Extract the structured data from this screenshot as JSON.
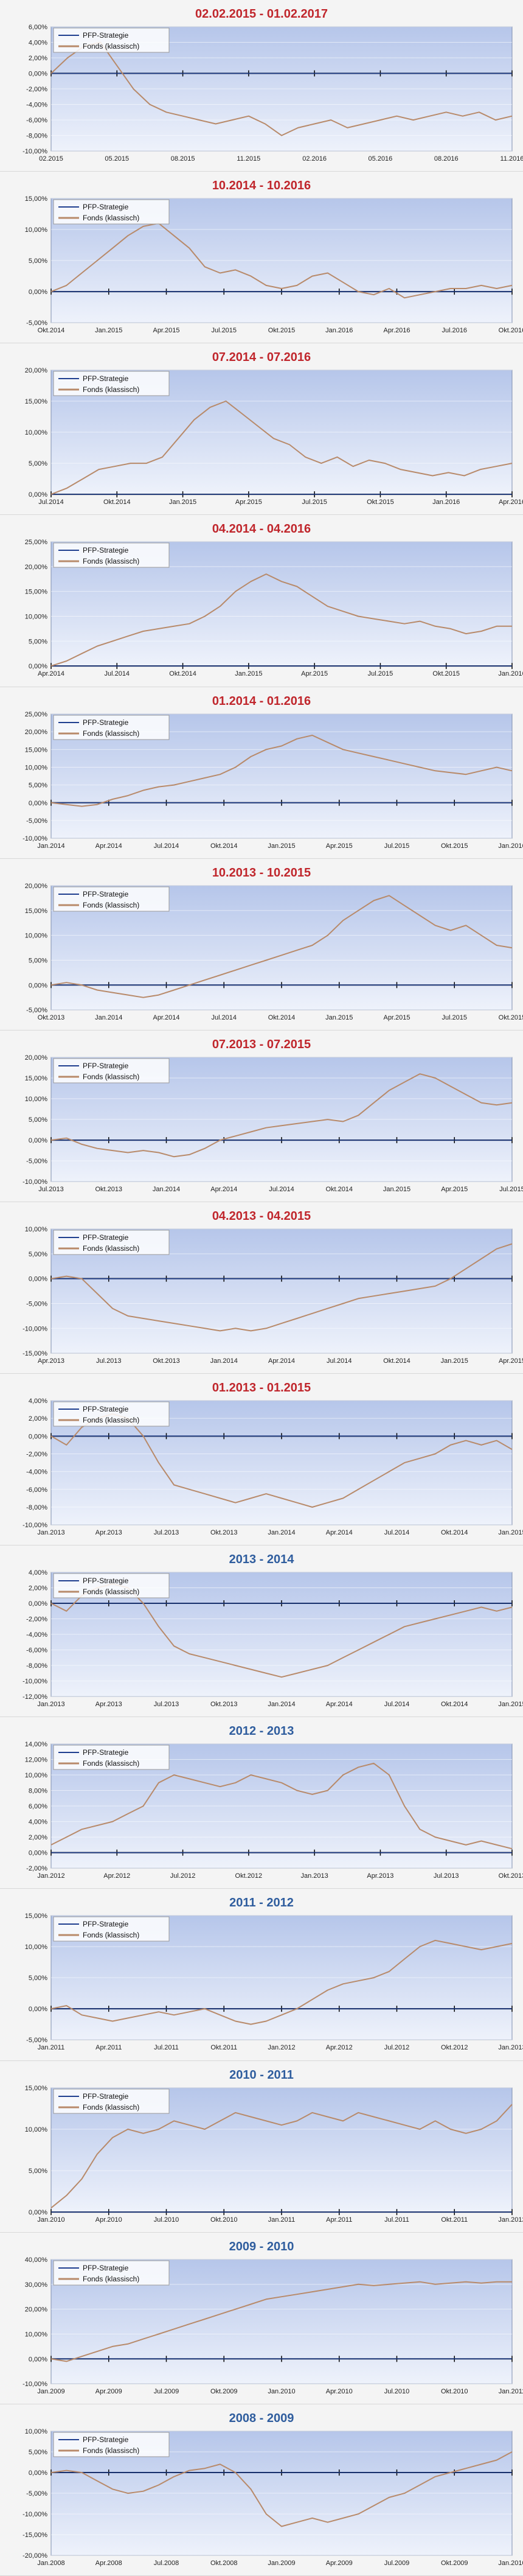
{
  "legend_labels": [
    "PFP-Strategie",
    "Fonds (klassisch)"
  ],
  "colors": {
    "strategy_line": "#1f3f8f",
    "fund_line": "#b88a6a",
    "plot_bg_top": "#b6c6ea",
    "plot_bg_bottom": "#eef2fb",
    "title_red": "#c0262c",
    "title_blue": "#2f5d9e"
  },
  "chart_data": [
    {
      "type": "line",
      "title": "02.02.2015 - 01.02.2017",
      "title_color": "red",
      "legend": [
        "PFP-Strategie",
        "Fonds (klassisch)"
      ],
      "ylim": [
        -10,
        6
      ],
      "yticks": [
        "6,00%",
        "4,00%",
        "2,00%",
        "0,00%",
        "-2,00%",
        "-4,00%",
        "-6,00%",
        "-8,00%",
        "-10,00%"
      ],
      "xticks": [
        "02.2015",
        "05.2015",
        "08.2015",
        "11.2015",
        "02.2016",
        "05.2016",
        "08.2016",
        "11.2016"
      ],
      "series": [
        {
          "name": "PFP-Strategie",
          "values": [
            0,
            0
          ]
        },
        {
          "name": "Fonds (klassisch)",
          "values": [
            0,
            2,
            3.5,
            4,
            1,
            -2,
            -4,
            -5,
            -5.5,
            -6,
            -6.5,
            -6,
            -5.5,
            -6.5,
            -8,
            -7,
            -6.5,
            -6,
            -7,
            -6.5,
            -6,
            -5.5,
            -6,
            -5.5,
            -5,
            -5.5,
            -5,
            -6,
            -5.5
          ]
        }
      ]
    },
    {
      "type": "line",
      "title": "10.2014 - 10.2016",
      "title_color": "red",
      "legend": [
        "PFP-Strategie",
        "Fonds (klassisch)"
      ],
      "ylim": [
        -5,
        15
      ],
      "yticks": [
        "15,00%",
        "10,00%",
        "5,00%",
        "0,00%",
        "-5,00%"
      ],
      "xticks": [
        "Okt.2014",
        "Jan.2015",
        "Apr.2015",
        "Jul.2015",
        "Okt.2015",
        "Jan.2016",
        "Apr.2016",
        "Jul.2016",
        "Okt.2016"
      ],
      "series": [
        {
          "name": "PFP-Strategie",
          "values": [
            0,
            0
          ]
        },
        {
          "name": "Fonds (klassisch)",
          "values": [
            0,
            1,
            3,
            5,
            7,
            9,
            10.5,
            11,
            9,
            7,
            4,
            3,
            3.5,
            2.5,
            1,
            0.5,
            1,
            2.5,
            3,
            1.5,
            0,
            -0.5,
            0.5,
            -1,
            -0.5,
            0,
            0.5,
            0.5,
            1,
            0.5,
            1
          ]
        }
      ]
    },
    {
      "type": "line",
      "title": "07.2014 - 07.2016",
      "title_color": "red",
      "legend": [
        "PFP-Strategie",
        "Fonds (klassisch)"
      ],
      "ylim": [
        0,
        20
      ],
      "yticks": [
        "20,00%",
        "15,00%",
        "10,00%",
        "5,00%",
        "0,00%"
      ],
      "xticks": [
        "Jul.2014",
        "Okt.2014",
        "Jan.2015",
        "Apr.2015",
        "Jul.2015",
        "Okt.2015",
        "Jan.2016",
        "Apr.2016"
      ],
      "series": [
        {
          "name": "PFP-Strategie",
          "values": [
            0,
            0
          ]
        },
        {
          "name": "Fonds (klassisch)",
          "values": [
            0,
            1,
            2.5,
            4,
            4.5,
            5,
            5,
            6,
            9,
            12,
            14,
            15,
            13,
            11,
            9,
            8,
            6,
            5,
            6,
            4.5,
            5.5,
            5,
            4,
            3.5,
            3,
            3.5,
            3,
            4,
            4.5,
            5
          ]
        }
      ]
    },
    {
      "type": "line",
      "title": "04.2014 - 04.2016",
      "title_color": "red",
      "legend": [
        "PFP-Strategie",
        "Fonds (klassisch)"
      ],
      "ylim": [
        0,
        25
      ],
      "yticks": [
        "25,00%",
        "20,00%",
        "15,00%",
        "10,00%",
        "5,00%",
        "0,00%"
      ],
      "xticks": [
        "Apr.2014",
        "Jul.2014",
        "Okt.2014",
        "Jan.2015",
        "Apr.2015",
        "Jul.2015",
        "Okt.2015",
        "Jan.2016"
      ],
      "series": [
        {
          "name": "PFP-Strategie",
          "values": [
            0,
            0
          ]
        },
        {
          "name": "Fonds (klassisch)",
          "values": [
            0,
            1,
            2.5,
            4,
            5,
            6,
            7,
            7.5,
            8,
            8.5,
            10,
            12,
            15,
            17,
            18.5,
            17,
            16,
            14,
            12,
            11,
            10,
            9.5,
            9,
            8.5,
            9,
            8,
            7.5,
            6.5,
            7,
            8,
            8
          ]
        }
      ]
    },
    {
      "type": "line",
      "title": "01.2014 - 01.2016",
      "title_color": "red",
      "legend": [
        "PFP-Strategie",
        "Fonds (klassisch)"
      ],
      "ylim": [
        -10,
        25
      ],
      "yticks": [
        "25,00%",
        "20,00%",
        "15,00%",
        "10,00%",
        "5,00%",
        "0,00%",
        "-5,00%",
        "-10,00%"
      ],
      "xticks": [
        "Jan.2014",
        "Apr.2014",
        "Jul.2014",
        "Okt.2014",
        "Jan.2015",
        "Apr.2015",
        "Jul.2015",
        "Okt.2015",
        "Jan.2016"
      ],
      "series": [
        {
          "name": "PFP-Strategie",
          "values": [
            0,
            0
          ]
        },
        {
          "name": "Fonds (klassisch)",
          "values": [
            0,
            -0.5,
            -1,
            -0.5,
            1,
            2,
            3.5,
            4.5,
            5,
            6,
            7,
            8,
            10,
            13,
            15,
            16,
            18,
            19,
            17,
            15,
            14,
            13,
            12,
            11,
            10,
            9,
            8.5,
            8,
            9,
            10,
            9
          ]
        }
      ]
    },
    {
      "type": "line",
      "title": "10.2013 - 10.2015",
      "title_color": "red",
      "legend": [
        "PFP-Strategie",
        "Fonds (klassisch)"
      ],
      "ylim": [
        -5,
        20
      ],
      "yticks": [
        "20,00%",
        "15,00%",
        "10,00%",
        "5,00%",
        "0,00%",
        "-5,00%"
      ],
      "xticks": [
        "Okt.2013",
        "Jan.2014",
        "Apr.2014",
        "Jul.2014",
        "Okt.2014",
        "Jan.2015",
        "Apr.2015",
        "Jul.2015",
        "Okt.2015"
      ],
      "series": [
        {
          "name": "PFP-Strategie",
          "values": [
            0,
            0
          ]
        },
        {
          "name": "Fonds (klassisch)",
          "values": [
            0,
            0.5,
            0,
            -1,
            -1.5,
            -2,
            -2.5,
            -2,
            -1,
            0,
            1,
            2,
            3,
            4,
            5,
            6,
            7,
            8,
            10,
            13,
            15,
            17,
            18,
            16,
            14,
            12,
            11,
            12,
            10,
            8,
            7.5
          ]
        }
      ]
    },
    {
      "type": "line",
      "title": "07.2013 - 07.2015",
      "title_color": "red",
      "legend": [
        "PFP-Strategie",
        "Fonds (klassisch)"
      ],
      "ylim": [
        -10,
        20
      ],
      "yticks": [
        "20,00%",
        "15,00%",
        "10,00%",
        "5,00%",
        "0,00%",
        "-5,00%",
        "-10,00%"
      ],
      "xticks": [
        "Jul.2013",
        "Okt.2013",
        "Jan.2014",
        "Apr.2014",
        "Jul.2014",
        "Okt.2014",
        "Jan.2015",
        "Apr.2015",
        "Jul.2015"
      ],
      "series": [
        {
          "name": "PFP-Strategie",
          "values": [
            0,
            0
          ]
        },
        {
          "name": "Fonds (klassisch)",
          "values": [
            0,
            0.5,
            -1,
            -2,
            -2.5,
            -3,
            -2.5,
            -3,
            -4,
            -3.5,
            -2,
            0,
            1,
            2,
            3,
            3.5,
            4,
            4.5,
            5,
            4.5,
            6,
            9,
            12,
            14,
            16,
            15,
            13,
            11,
            9,
            8.5,
            9
          ]
        }
      ]
    },
    {
      "type": "line",
      "title": "04.2013 - 04.2015",
      "title_color": "red",
      "legend": [
        "PFP-Strategie",
        "Fonds (klassisch)"
      ],
      "ylim": [
        -15,
        10
      ],
      "yticks": [
        "10,00%",
        "5,00%",
        "0,00%",
        "-5,00%",
        "-10,00%",
        "-15,00%"
      ],
      "xticks": [
        "Apr.2013",
        "Jul.2013",
        "Okt.2013",
        "Jan.2014",
        "Apr.2014",
        "Jul.2014",
        "Okt.2014",
        "Jan.2015",
        "Apr.2015"
      ],
      "series": [
        {
          "name": "PFP-Strategie",
          "values": [
            0,
            0
          ]
        },
        {
          "name": "Fonds (klassisch)",
          "values": [
            0,
            0.5,
            0,
            -3,
            -6,
            -7.5,
            -8,
            -8.5,
            -9,
            -9.5,
            -10,
            -10.5,
            -10,
            -10.5,
            -10,
            -9,
            -8,
            -7,
            -6,
            -5,
            -4,
            -3.5,
            -3,
            -2.5,
            -2,
            -1.5,
            0,
            2,
            4,
            6,
            7
          ]
        }
      ]
    },
    {
      "type": "line",
      "title": "01.2013 - 01.2015",
      "title_color": "red",
      "legend": [
        "PFP-Strategie",
        "Fonds (klassisch)"
      ],
      "ylim": [
        -10,
        4
      ],
      "yticks": [
        "4,00%",
        "2,00%",
        "0,00%",
        "-2,00%",
        "-4,00%",
        "-6,00%",
        "-8,00%",
        "-10,00%"
      ],
      "xticks": [
        "Jan.2013",
        "Apr.2013",
        "Jul.2013",
        "Okt.2013",
        "Jan.2014",
        "Apr.2014",
        "Jul.2014",
        "Okt.2014",
        "Jan.2015"
      ],
      "series": [
        {
          "name": "PFP-Strategie",
          "values": [
            0,
            0
          ]
        },
        {
          "name": "Fonds (klassisch)",
          "values": [
            0,
            -1,
            1,
            2,
            2.5,
            2,
            0,
            -3,
            -5.5,
            -6,
            -6.5,
            -7,
            -7.5,
            -7,
            -6.5,
            -7,
            -7.5,
            -8,
            -7.5,
            -7,
            -6,
            -5,
            -4,
            -3,
            -2.5,
            -2,
            -1,
            -0.5,
            -1,
            -0.5,
            -1.5
          ]
        }
      ]
    },
    {
      "type": "line",
      "title": "2013 - 2014",
      "title_color": "blue",
      "legend": [
        "PFP-Strategie",
        "Fonds (klassisch)"
      ],
      "ylim": [
        -12,
        4
      ],
      "yticks": [
        "4,00%",
        "2,00%",
        "0,00%",
        "-2,00%",
        "-4,00%",
        "-6,00%",
        "-8,00%",
        "-10,00%",
        "-12,00%"
      ],
      "xticks": [
        "Jan.2013",
        "Apr.2013",
        "Jul.2013",
        "Okt.2013",
        "Jan.2014",
        "Apr.2014",
        "Jul.2014",
        "Okt.2014",
        "Jan.2015"
      ],
      "series": [
        {
          "name": "PFP-Strategie",
          "values": [
            0,
            0
          ]
        },
        {
          "name": "Fonds (klassisch)",
          "values": [
            0,
            -1,
            1,
            2,
            2.5,
            2,
            0,
            -3,
            -5.5,
            -6.5,
            -7,
            -7.5,
            -8,
            -8.5,
            -9,
            -9.5,
            -9,
            -8.5,
            -8,
            -7,
            -6,
            -5,
            -4,
            -3,
            -2.5,
            -2,
            -1.5,
            -1,
            -0.5,
            -1,
            -0.5
          ]
        }
      ]
    },
    {
      "type": "line",
      "title": "2012 - 2013",
      "title_color": "blue",
      "legend": [
        "PFP-Strategie",
        "Fonds (klassisch)"
      ],
      "ylim": [
        -2,
        14
      ],
      "yticks": [
        "14,00%",
        "12,00%",
        "10,00%",
        "8,00%",
        "6,00%",
        "4,00%",
        "2,00%",
        "0,00%",
        "-2,00%"
      ],
      "xticks": [
        "Jan.2012",
        "Apr.2012",
        "Jul.2012",
        "Okt.2012",
        "Jan.2013",
        "Apr.2013",
        "Jul.2013",
        "Okt.2013"
      ],
      "series": [
        {
          "name": "PFP-Strategie",
          "values": [
            0,
            0
          ]
        },
        {
          "name": "Fonds (klassisch)",
          "values": [
            1,
            2,
            3,
            3.5,
            4,
            5,
            6,
            9,
            10,
            9.5,
            9,
            8.5,
            9,
            10,
            9.5,
            9,
            8,
            7.5,
            8,
            10,
            11,
            11.5,
            10,
            6,
            3,
            2,
            1.5,
            1,
            1.5,
            1,
            0.5
          ]
        }
      ]
    },
    {
      "type": "line",
      "title": "2011 - 2012",
      "title_color": "blue",
      "legend": [
        "PFP-Strategie",
        "Fonds (klassisch)"
      ],
      "ylim": [
        -5,
        15
      ],
      "yticks": [
        "15,00%",
        "10,00%",
        "5,00%",
        "0,00%",
        "-5,00%"
      ],
      "xticks": [
        "Jan.2011",
        "Apr.2011",
        "Jul.2011",
        "Okt.2011",
        "Jan.2012",
        "Apr.2012",
        "Jul.2012",
        "Okt.2012",
        "Jan.2013"
      ],
      "series": [
        {
          "name": "PFP-Strategie",
          "values": [
            0,
            0
          ]
        },
        {
          "name": "Fonds (klassisch)",
          "values": [
            0,
            0.5,
            -1,
            -1.5,
            -2,
            -1.5,
            -1,
            -0.5,
            -1,
            -0.5,
            0,
            -1,
            -2,
            -2.5,
            -2,
            -1,
            0,
            1.5,
            3,
            4,
            4.5,
            5,
            6,
            8,
            10,
            11,
            10.5,
            10,
            9.5,
            10,
            10.5
          ]
        }
      ]
    },
    {
      "type": "line",
      "title": "2010 - 2011",
      "title_color": "blue",
      "legend": [
        "PFP-Strategie",
        "Fonds (klassisch)"
      ],
      "ylim": [
        0,
        15
      ],
      "yticks": [
        "15,00%",
        "10,00%",
        "5,00%",
        "0,00%"
      ],
      "xticks": [
        "Jan.2010",
        "Apr.2010",
        "Jul.2010",
        "Okt.2010",
        "Jan.2011",
        "Apr.2011",
        "Jul.2011",
        "Okt.2011",
        "Jan.2012"
      ],
      "series": [
        {
          "name": "PFP-Strategie",
          "values": [
            0,
            0
          ]
        },
        {
          "name": "Fonds (klassisch)",
          "values": [
            0.5,
            2,
            4,
            7,
            9,
            10,
            9.5,
            10,
            11,
            10.5,
            10,
            11,
            12,
            11.5,
            11,
            10.5,
            11,
            12,
            11.5,
            11,
            12,
            11.5,
            11,
            10.5,
            10,
            11,
            10,
            9.5,
            10,
            11,
            13
          ]
        }
      ]
    },
    {
      "type": "line",
      "title": "2009 - 2010",
      "title_color": "blue",
      "legend": [
        "PFP-Strategie",
        "Fonds (klassisch)"
      ],
      "ylim": [
        -10,
        40
      ],
      "yticks": [
        "40,00%",
        "30,00%",
        "20,00%",
        "10,00%",
        "0,00%",
        "-10,00%"
      ],
      "xticks": [
        "Jan.2009",
        "Apr.2009",
        "Jul.2009",
        "Okt.2009",
        "Jan.2010",
        "Apr.2010",
        "Jul.2010",
        "Okt.2010",
        "Jan.2011"
      ],
      "series": [
        {
          "name": "PFP-Strategie",
          "values": [
            0,
            0
          ]
        },
        {
          "name": "Fonds (klassisch)",
          "values": [
            0,
            -1,
            1,
            3,
            5,
            6,
            8,
            10,
            12,
            14,
            16,
            18,
            20,
            22,
            24,
            25,
            26,
            27,
            28,
            29,
            30,
            29.5,
            30,
            30.5,
            31,
            30,
            30.5,
            31,
            30.5,
            31,
            31
          ]
        }
      ]
    },
    {
      "type": "line",
      "title": "2008 - 2009",
      "title_color": "blue",
      "legend": [
        "PFP-Strategie",
        "Fonds (klassisch)"
      ],
      "ylim": [
        -20,
        10
      ],
      "yticks": [
        "10,00%",
        "5,00%",
        "0,00%",
        "-5,00%",
        "-10,00%",
        "-15,00%",
        "-20,00%"
      ],
      "xticks": [
        "Jan.2008",
        "Apr.2008",
        "Jul.2008",
        "Okt.2008",
        "Jan.2009",
        "Apr.2009",
        "Jul.2009",
        "Okt.2009",
        "Jan.2010"
      ],
      "series": [
        {
          "name": "PFP-Strategie",
          "values": [
            0,
            0
          ]
        },
        {
          "name": "Fonds (klassisch)",
          "values": [
            0,
            0.5,
            0,
            -2,
            -4,
            -5,
            -4.5,
            -3,
            -1,
            0.5,
            1,
            2,
            0,
            -4,
            -10,
            -13,
            -12,
            -11,
            -12,
            -11,
            -10,
            -8,
            -6,
            -5,
            -3,
            -1,
            0,
            1,
            2,
            3,
            5
          ]
        }
      ]
    }
  ]
}
